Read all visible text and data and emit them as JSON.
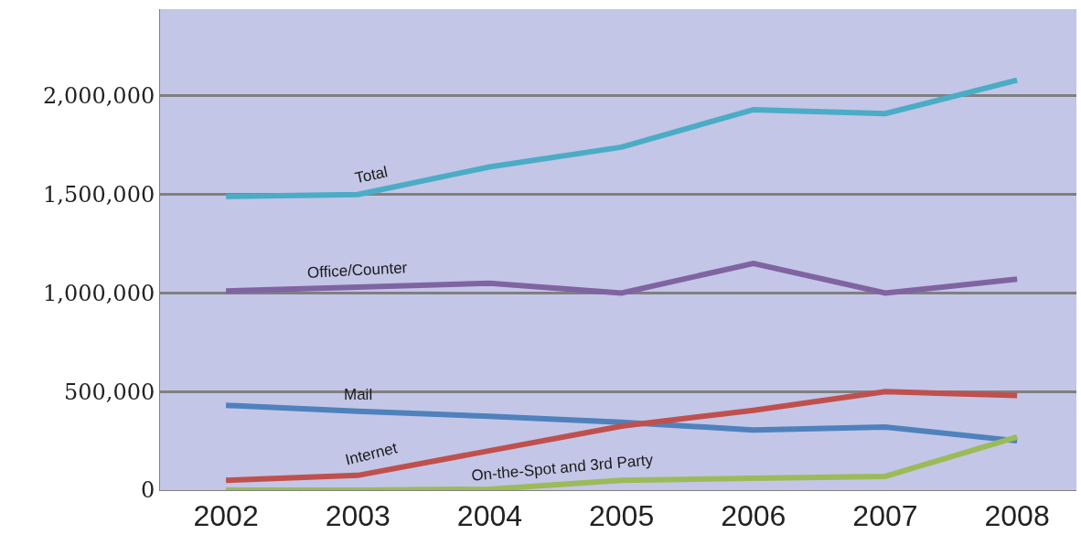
{
  "chart_data": {
    "type": "line",
    "x": [
      2002,
      2003,
      2004,
      2005,
      2006,
      2007,
      2008
    ],
    "xlim": [
      2001.5,
      2008.45
    ],
    "xticks": [
      2002,
      2003,
      2004,
      2005,
      2006,
      2007,
      2008
    ],
    "ylim": [
      0,
      2440000
    ],
    "yticks": [
      {
        "value": 0,
        "label": "0"
      },
      {
        "value": 500000,
        "label": "500,000"
      },
      {
        "value": 1000000,
        "label": "1,000,000"
      },
      {
        "value": 1500000,
        "label": "1,500,000"
      },
      {
        "value": 2000000,
        "label": "2,000,000"
      }
    ],
    "grid": "y",
    "legend": false,
    "marker": "none",
    "line_style": "solid",
    "series": [
      {
        "name": "Total",
        "color": "#4bacc6",
        "values": [
          1490000,
          1500000,
          1640000,
          1740000,
          1930000,
          1910000,
          2080000
        ]
      },
      {
        "name": "Office/Counter",
        "color": "#8064a2",
        "values": [
          1010000,
          1030000,
          1050000,
          1000000,
          1150000,
          1000000,
          1070000
        ]
      },
      {
        "name": "Mail",
        "color": "#4f81bd",
        "values": [
          430000,
          400000,
          375000,
          345000,
          305000,
          320000,
          250000
        ]
      },
      {
        "name": "Internet",
        "color": "#c0504d",
        "values": [
          50000,
          75000,
          200000,
          325000,
          405000,
          500000,
          480000
        ]
      },
      {
        "name": "On-the-Spot and 3rd Party",
        "color": "#9bbb59",
        "values": [
          0,
          0,
          5000,
          50000,
          60000,
          70000,
          270000
        ]
      }
    ]
  }
}
